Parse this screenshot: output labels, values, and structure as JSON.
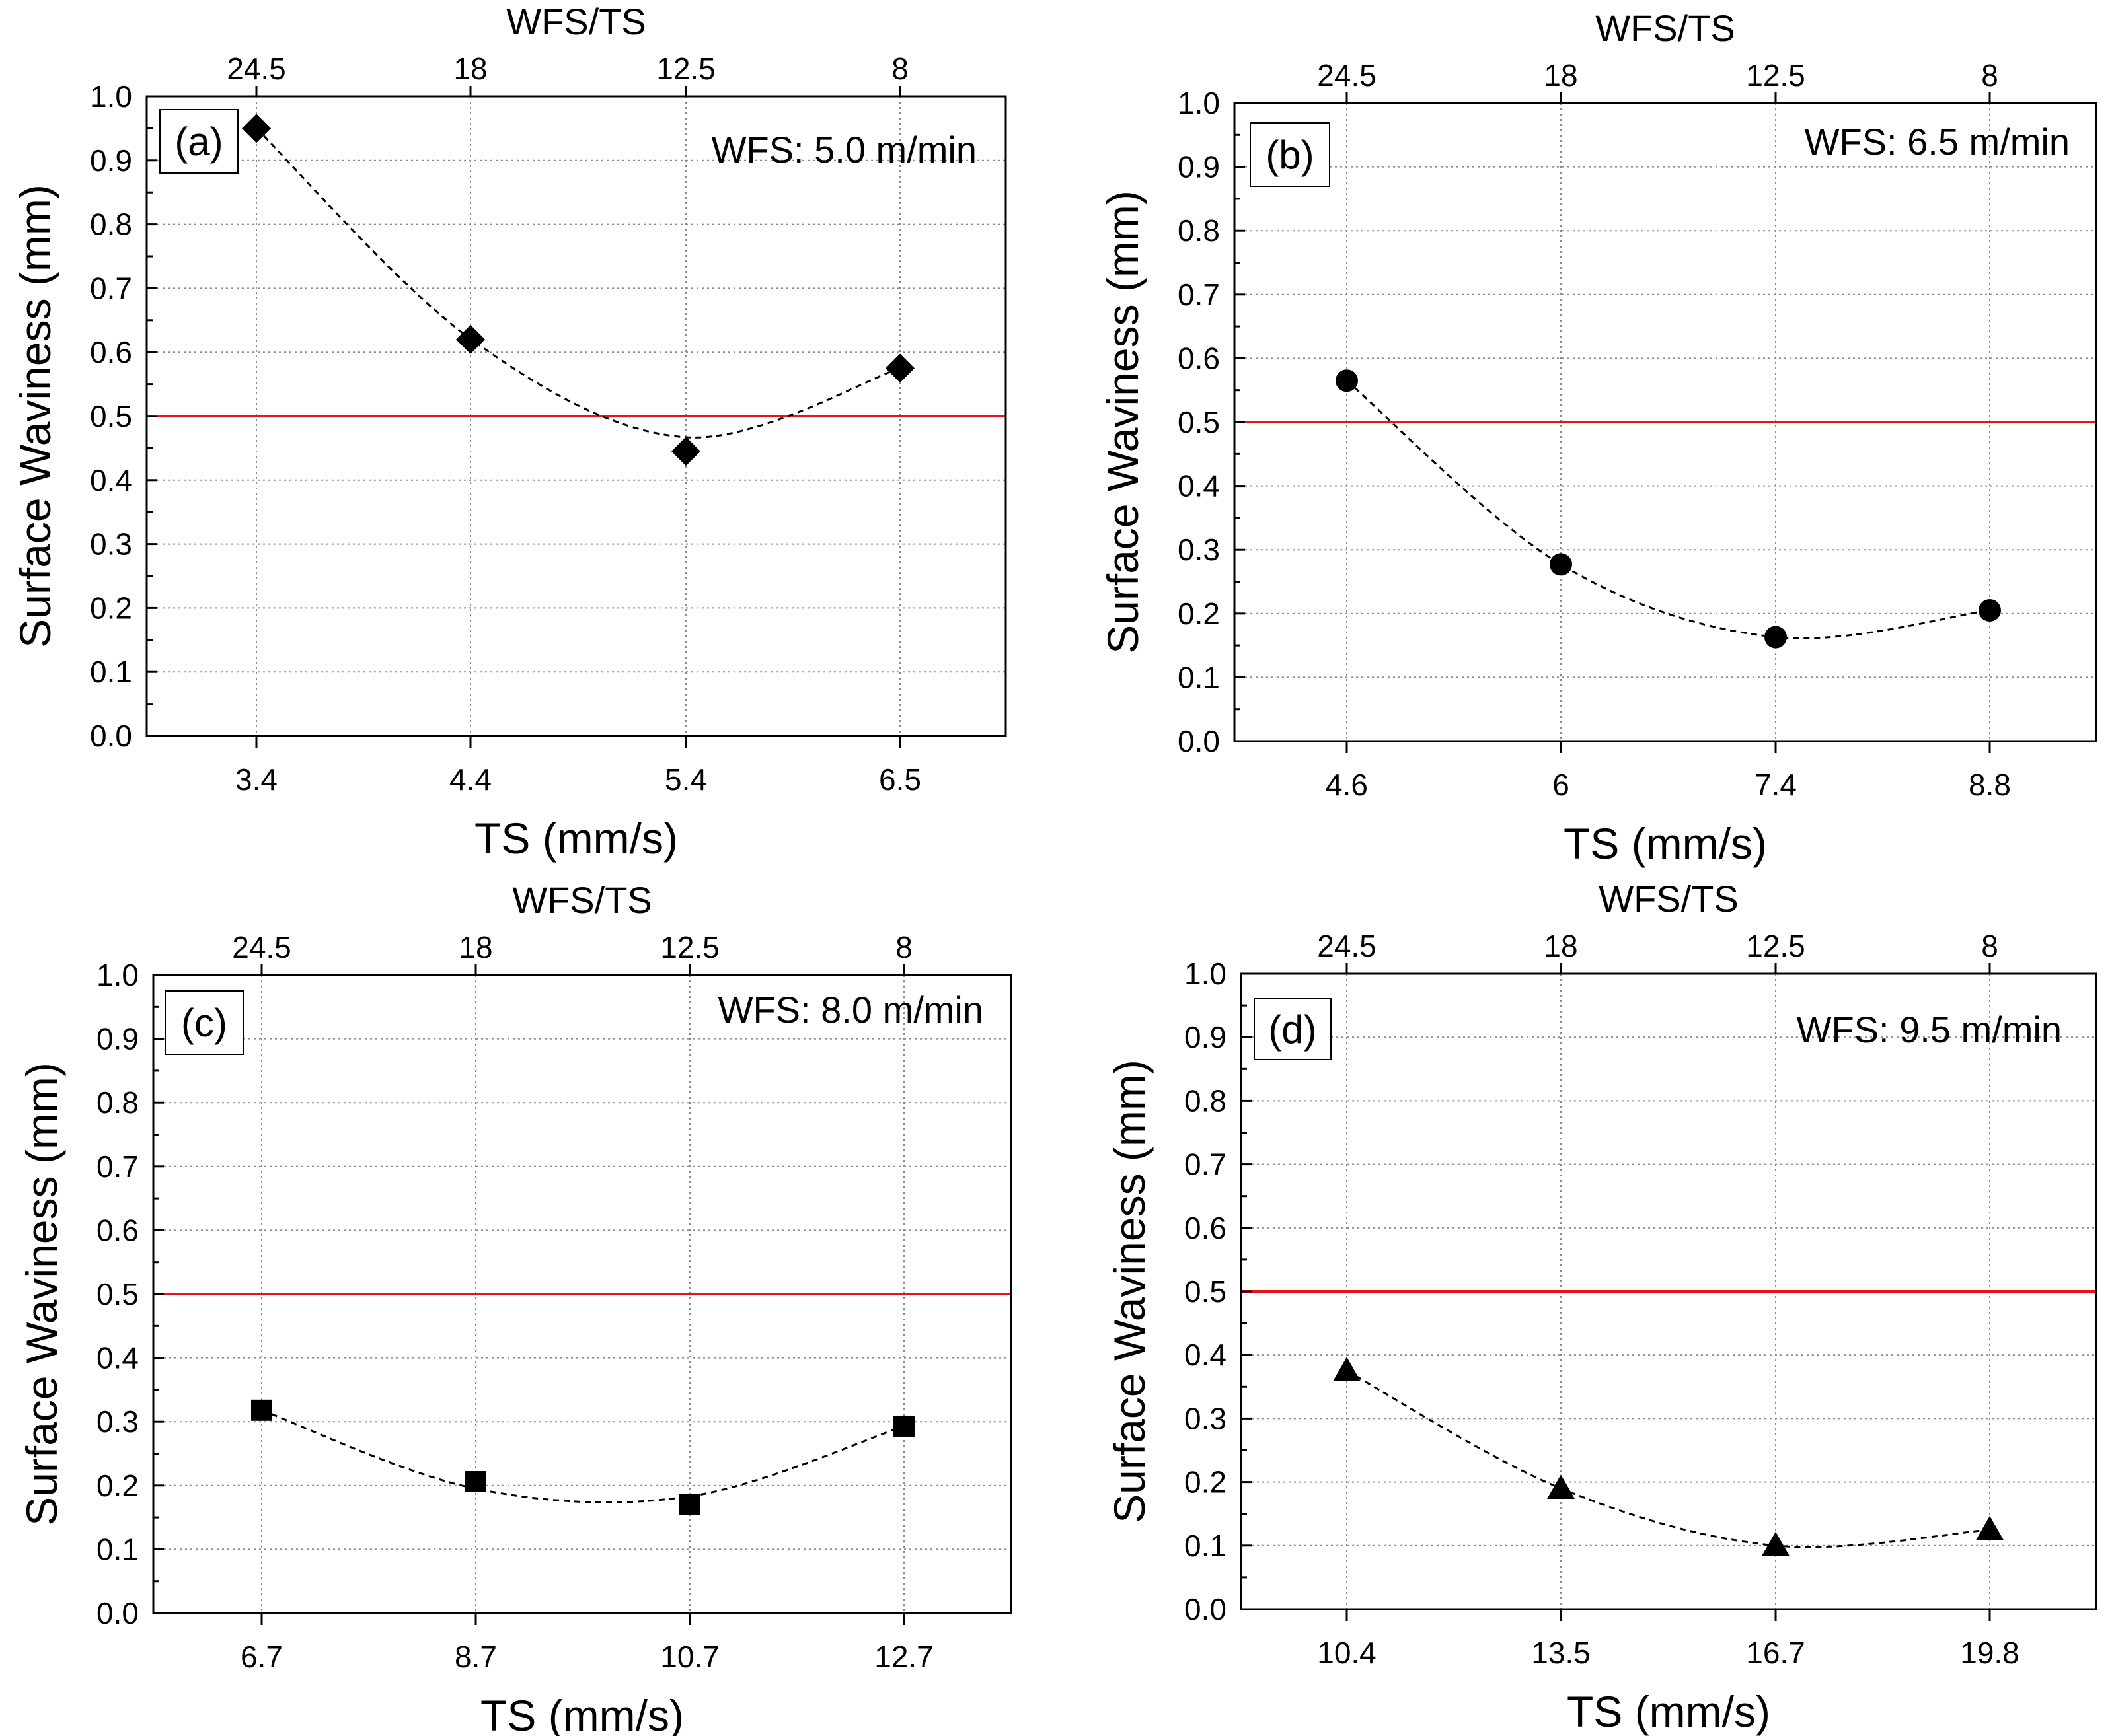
{
  "chart_data": [
    {
      "type": "scatter",
      "panel_label": "(a)",
      "annotation": "WFS: 5.0 m/min",
      "xlabel": "TS (mm/s)",
      "ylabel": "Surface Waviness (mm)",
      "top_xlabel": "WFS/TS",
      "x_tick_labels": [
        "3.4",
        "4.4",
        "5.4",
        "6.5"
      ],
      "top_tick_labels": [
        "24.5",
        "18",
        "12.5",
        "8"
      ],
      "y_ticks": [
        "0.0",
        "0.1",
        "0.2",
        "0.3",
        "0.4",
        "0.5",
        "0.6",
        "0.7",
        "0.8",
        "0.9",
        "1.0"
      ],
      "ylim": [
        0,
        1.0
      ],
      "marker": "diamond",
      "values": [
        0.95,
        0.62,
        0.445,
        0.575
      ],
      "fit": [
        0.95,
        0.621,
        0.467,
        0.575
      ],
      "threshold": 0.5,
      "threshold_color": "#e8141a",
      "grid": true
    },
    {
      "type": "scatter",
      "panel_label": "(b)",
      "annotation": "WFS: 6.5 m/min",
      "xlabel": "TS (mm/s)",
      "ylabel": "Surface Waviness (mm)",
      "top_xlabel": "WFS/TS",
      "x_tick_labels": [
        "4.6",
        "6",
        "7.4",
        "8.8"
      ],
      "top_tick_labels": [
        "24.5",
        "18",
        "12.5",
        "8"
      ],
      "y_ticks": [
        "0.0",
        "0.1",
        "0.2",
        "0.3",
        "0.4",
        "0.5",
        "0.6",
        "0.7",
        "0.8",
        "0.9",
        "1.0"
      ],
      "ylim": [
        0,
        1.0
      ],
      "marker": "circle",
      "values": [
        0.565,
        0.277,
        0.163,
        0.205
      ],
      "fit": [
        0.565,
        0.277,
        0.163,
        0.205
      ],
      "threshold": 0.5,
      "threshold_color": "#e8141a",
      "grid": true
    },
    {
      "type": "scatter",
      "panel_label": "(c)",
      "annotation": "WFS: 8.0 m/min",
      "xlabel": "TS (mm/s)",
      "ylabel": "Surface Waviness (mm)",
      "top_xlabel": "WFS/TS",
      "x_tick_labels": [
        "6.7",
        "8.7",
        "10.7",
        "12.7"
      ],
      "top_tick_labels": [
        "24.5",
        "18",
        "12.5",
        "8"
      ],
      "y_ticks": [
        "0.0",
        "0.1",
        "0.2",
        "0.3",
        "0.4",
        "0.5",
        "0.6",
        "0.7",
        "0.8",
        "0.9",
        "1.0"
      ],
      "ylim": [
        0,
        1.0
      ],
      "marker": "square",
      "values": [
        0.318,
        0.206,
        0.17,
        0.293
      ],
      "fit": [
        0.318,
        0.195,
        0.183,
        0.293
      ],
      "threshold": 0.5,
      "threshold_color": "#e8141a",
      "grid": true
    },
    {
      "type": "scatter",
      "panel_label": "(d)",
      "annotation": "WFS: 9.5 m/min",
      "xlabel": "TS (mm/s)",
      "ylabel": "Surface Waviness (mm)",
      "top_xlabel": "WFS/TS",
      "x_tick_labels": [
        "10.4",
        "13.5",
        "16.7",
        "19.8"
      ],
      "top_tick_labels": [
        "24.5",
        "18",
        "12.5",
        "8"
      ],
      "y_ticks": [
        "0.0",
        "0.1",
        "0.2",
        "0.3",
        "0.4",
        "0.5",
        "0.6",
        "0.7",
        "0.8",
        "0.9",
        "1.0"
      ],
      "ylim": [
        0,
        1.0
      ],
      "marker": "triangle",
      "values": [
        0.375,
        0.19,
        0.1,
        0.125
      ],
      "fit": [
        0.375,
        0.19,
        0.1,
        0.125
      ],
      "threshold": 0.5,
      "threshold_color": "#e8141a",
      "grid": true
    }
  ]
}
